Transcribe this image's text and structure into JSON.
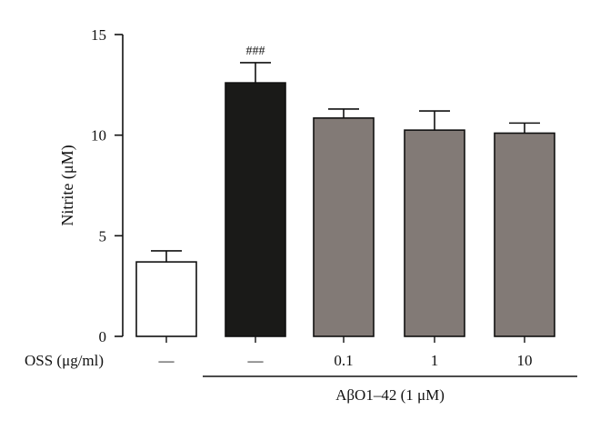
{
  "chart_data": {
    "type": "bar",
    "categories": [
      "—",
      "—",
      "0.1",
      "1",
      "10"
    ],
    "values": [
      3.7,
      12.6,
      10.85,
      10.25,
      10.1
    ],
    "errors": [
      0.55,
      1.0,
      0.45,
      0.95,
      0.5
    ],
    "bar_colors": [
      "#ffffff",
      "#1a1a18",
      "#827a76",
      "#827a76",
      "#827a76"
    ],
    "annotations": [
      "",
      "###",
      "",
      "",
      ""
    ],
    "ylabel": "Nitrite (μM)",
    "ylim": [
      0,
      15
    ],
    "yticks": [
      0,
      5,
      10,
      15
    ],
    "x_row_label": "OSS (μg/ml)",
    "group_label": "AβO1–42 (1 μM)",
    "group_span": [
      1,
      4
    ],
    "grid": false
  }
}
